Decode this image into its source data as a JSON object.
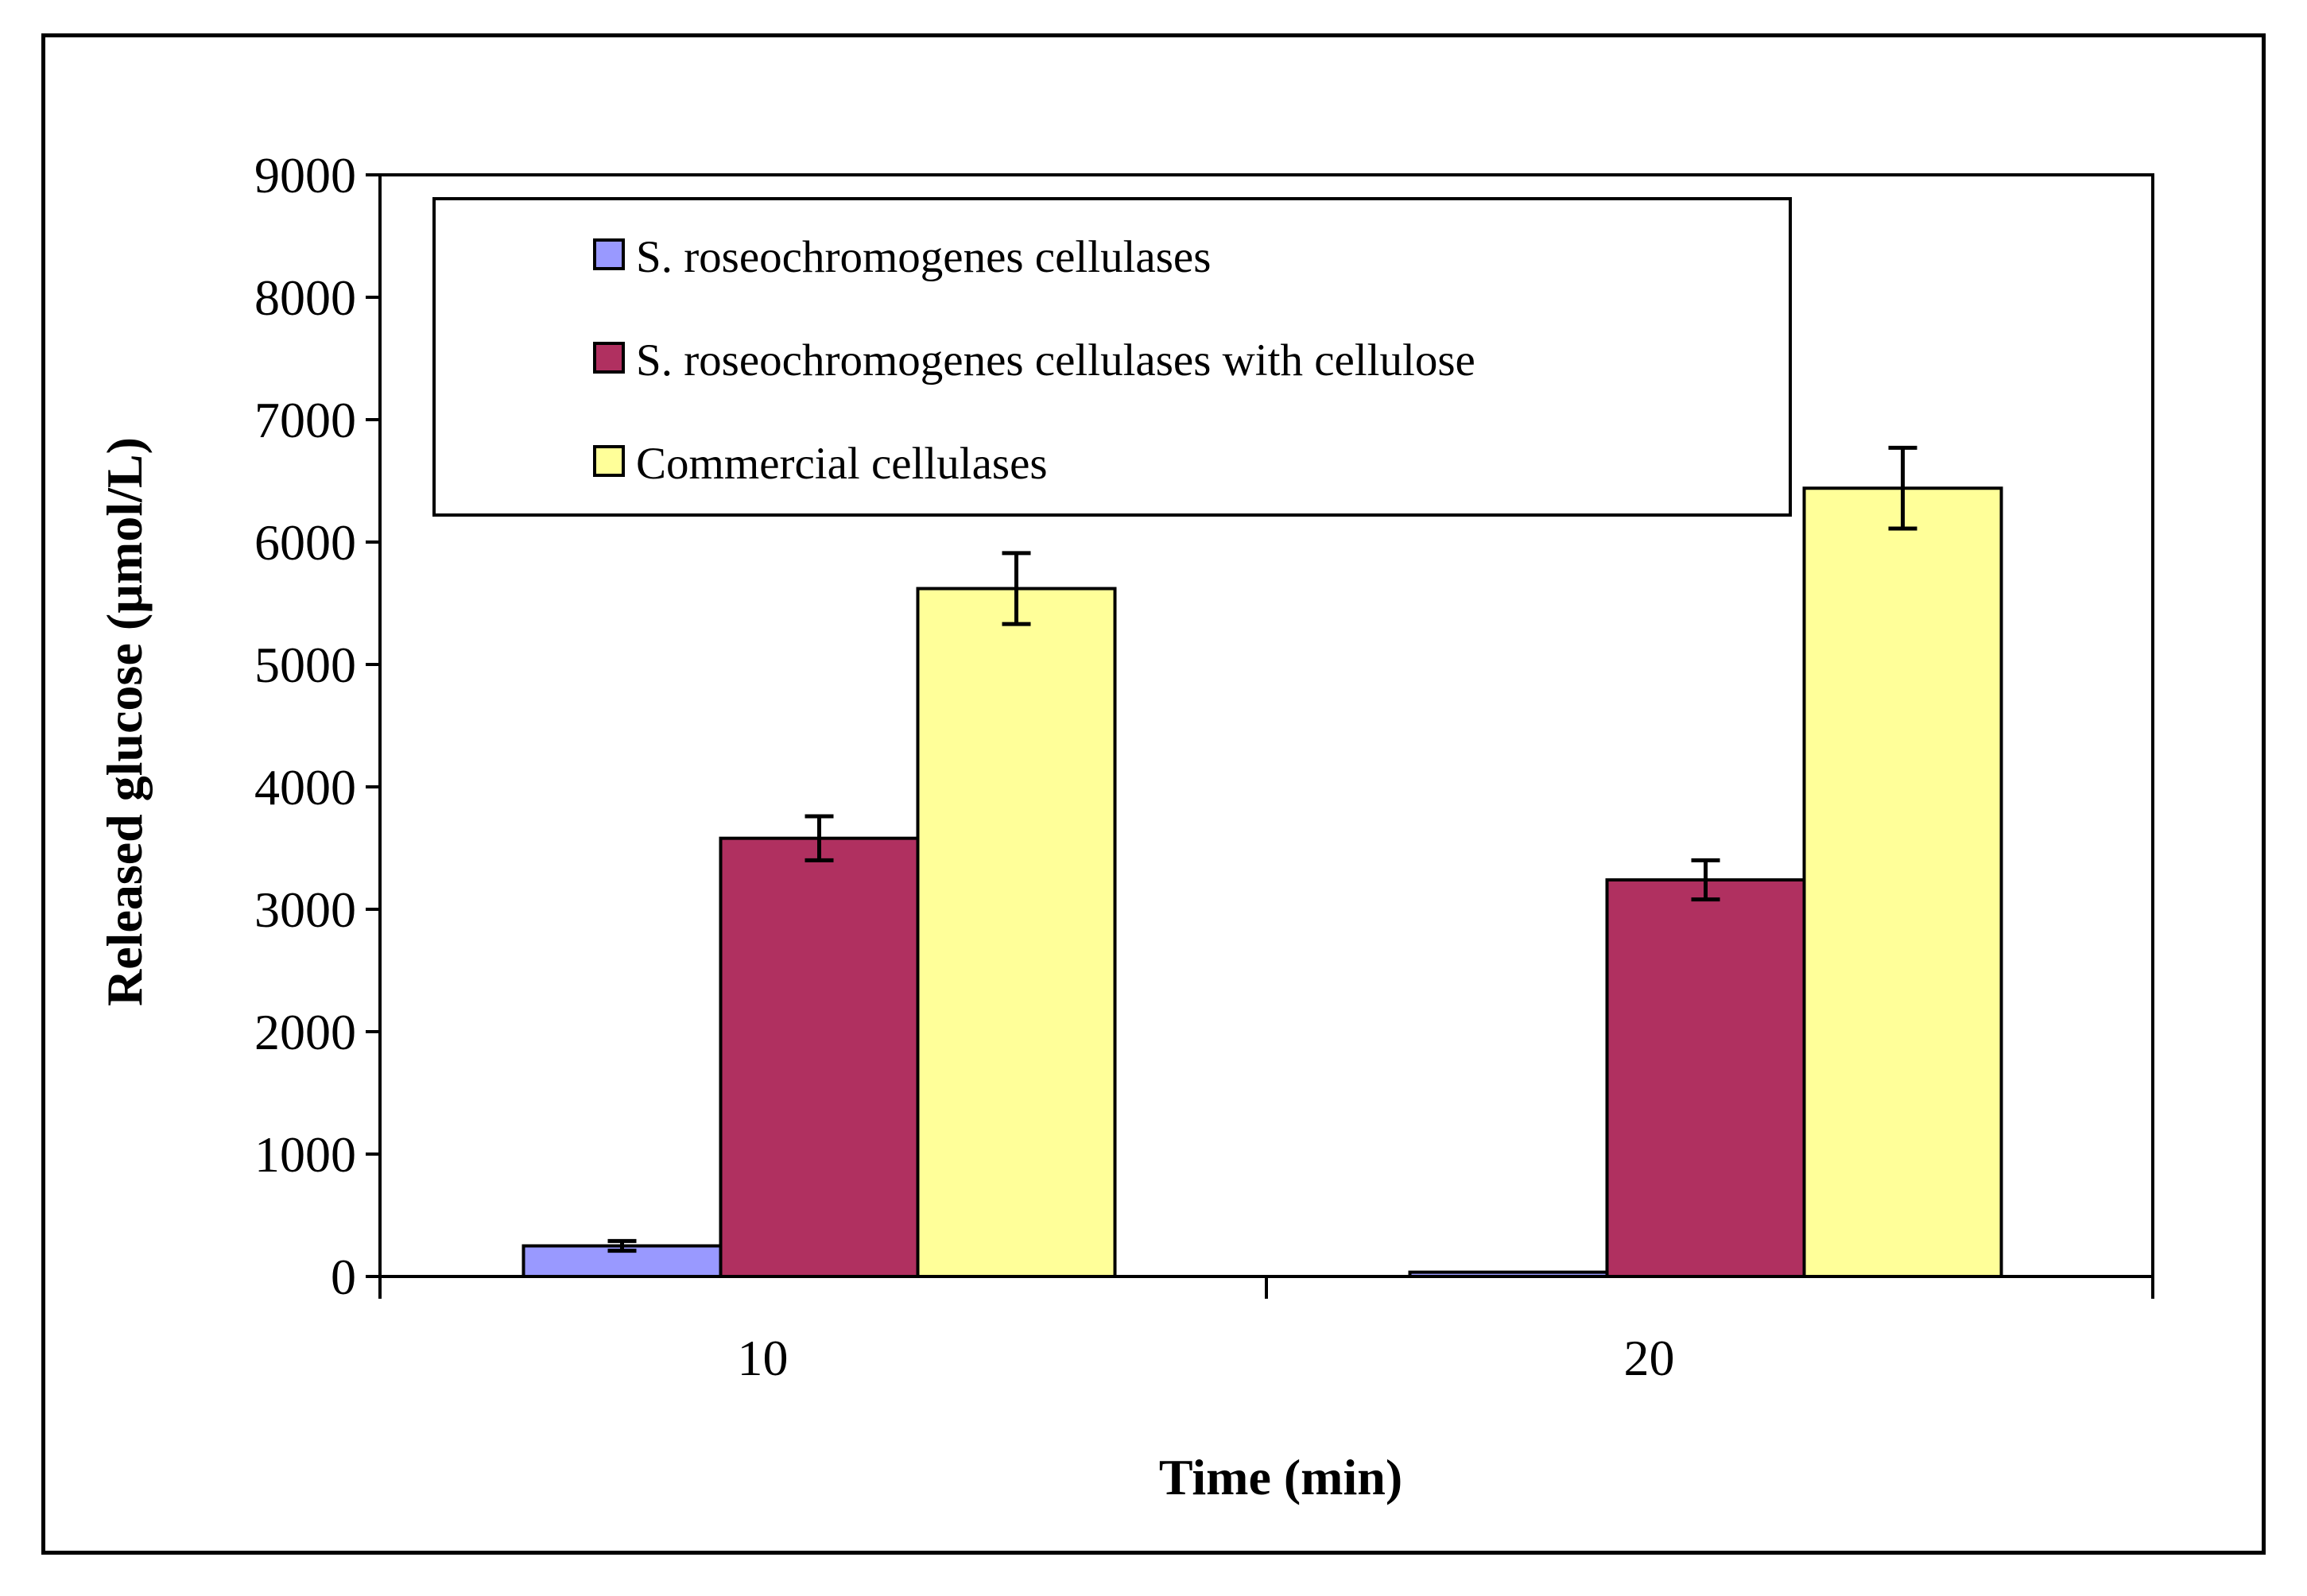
{
  "chart_data": {
    "type": "bar",
    "title": "",
    "xlabel": "Time (min)",
    "ylabel": "Released glucose (µmol/L)",
    "ylim": [
      0,
      9000
    ],
    "yticks": [
      "0",
      "1000",
      "2000",
      "3000",
      "4000",
      "5000",
      "6000",
      "7000",
      "8000",
      "9000"
    ],
    "categories": [
      "10",
      "20"
    ],
    "legend_position": "top",
    "series": [
      {
        "name": "S. roseochromogenes cellulases",
        "color": "#9999ff",
        "values": [
          250,
          35
        ],
        "errors": [
          40,
          0
        ]
      },
      {
        "name": "S. roseochromogenes cellulases with cellulose",
        "color": "#b03060",
        "values": [
          3580,
          3240
        ],
        "errors": [
          180,
          160
        ]
      },
      {
        "name": "Commercial cellulases",
        "color": "#ffff99",
        "values": [
          5620,
          6440
        ],
        "errors": [
          290,
          330
        ]
      }
    ]
  }
}
